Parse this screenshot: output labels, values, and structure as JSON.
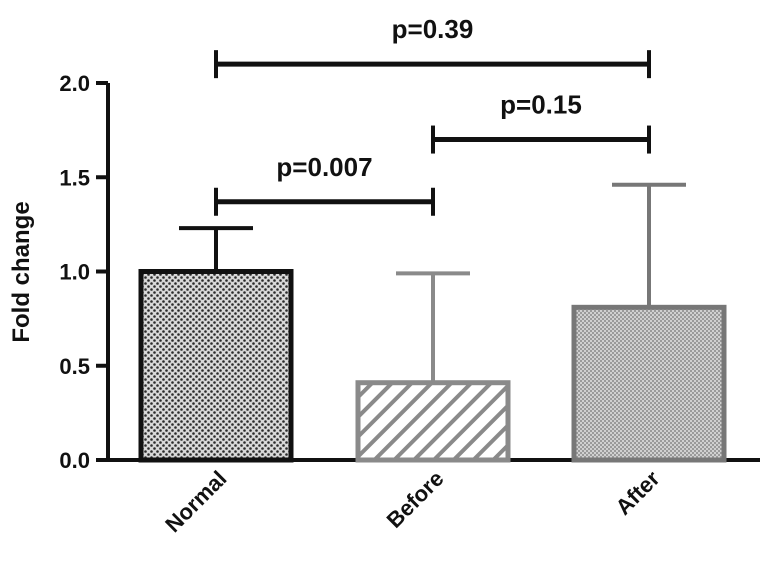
{
  "chart_data": {
    "type": "bar",
    "ylabel": "Fold change",
    "xlabel": "",
    "ylim": [
      0,
      2.0
    ],
    "yticks": [
      "0.0",
      "0.5",
      "1.0",
      "1.5",
      "2.0"
    ],
    "categories": [
      "Normal",
      "Before",
      "After"
    ],
    "values": [
      1.0,
      0.41,
      0.81
    ],
    "error_upper": [
      1.23,
      0.99,
      1.46
    ],
    "bar_styles": [
      {
        "pattern": "dots",
        "color": "#111111"
      },
      {
        "pattern": "diagonal-stripes",
        "color": "#8a8a8a"
      },
      {
        "pattern": "fine-checker",
        "color": "#777777"
      }
    ],
    "significance": [
      {
        "from": "Normal",
        "to": "Before",
        "label": "p=0.007",
        "level": 1.37
      },
      {
        "from": "Before",
        "to": "After",
        "label": "p=0.15",
        "level": 1.7
      },
      {
        "from": "Normal",
        "to": "After",
        "label": "p=0.39",
        "level": 2.1
      }
    ],
    "grid": false,
    "legend": "none"
  }
}
